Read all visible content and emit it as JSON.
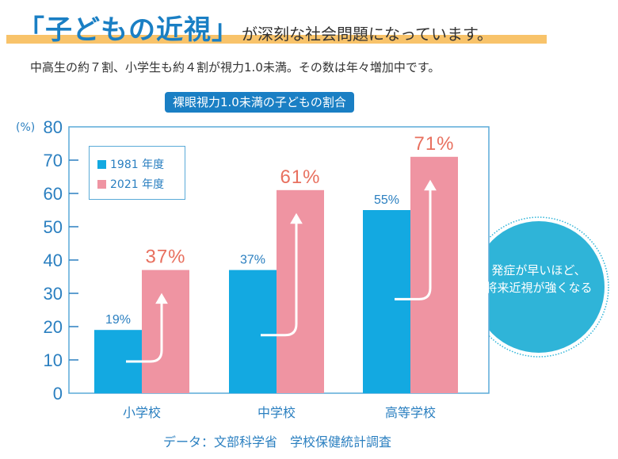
{
  "header": {
    "title_main": "「子どもの近視」",
    "title_sub": "が深刻な社会問題になっています。",
    "subtitle": "中高生の約７割、小学生も約４割が視力1.0未満。その数は年々増加中です。"
  },
  "callout": {
    "line1": "発症が早いほど、",
    "line2": "将来近視が強くなる"
  },
  "source": "データ：文部科学省　学校保健統計調査",
  "colors": {
    "accent": "#1a7fc4",
    "series_1981": "#13a9e1",
    "series_2021": "#ef94a2",
    "label_2021": "#e8705f",
    "callout": "#2fb4d8",
    "highlight": "#f8c36a"
  },
  "chart_data": {
    "type": "bar",
    "title": "裸眼視力1.0未満の子どもの割合",
    "ylabel": "(%)",
    "ylim": [
      0,
      80
    ],
    "yticks": [
      "0",
      "10",
      "20",
      "30",
      "40",
      "50",
      "60",
      "70",
      "80"
    ],
    "categories": [
      "小学校",
      "中学校",
      "高等学校"
    ],
    "series": [
      {
        "name": "1981 年度",
        "values": [
          19,
          37,
          55
        ],
        "labels": [
          "19%",
          "37%",
          "55%"
        ]
      },
      {
        "name": "2021 年度",
        "values": [
          37,
          61,
          71
        ],
        "labels": [
          "37%",
          "61%",
          "71%"
        ]
      }
    ],
    "legend": "top-left",
    "grid": false
  }
}
